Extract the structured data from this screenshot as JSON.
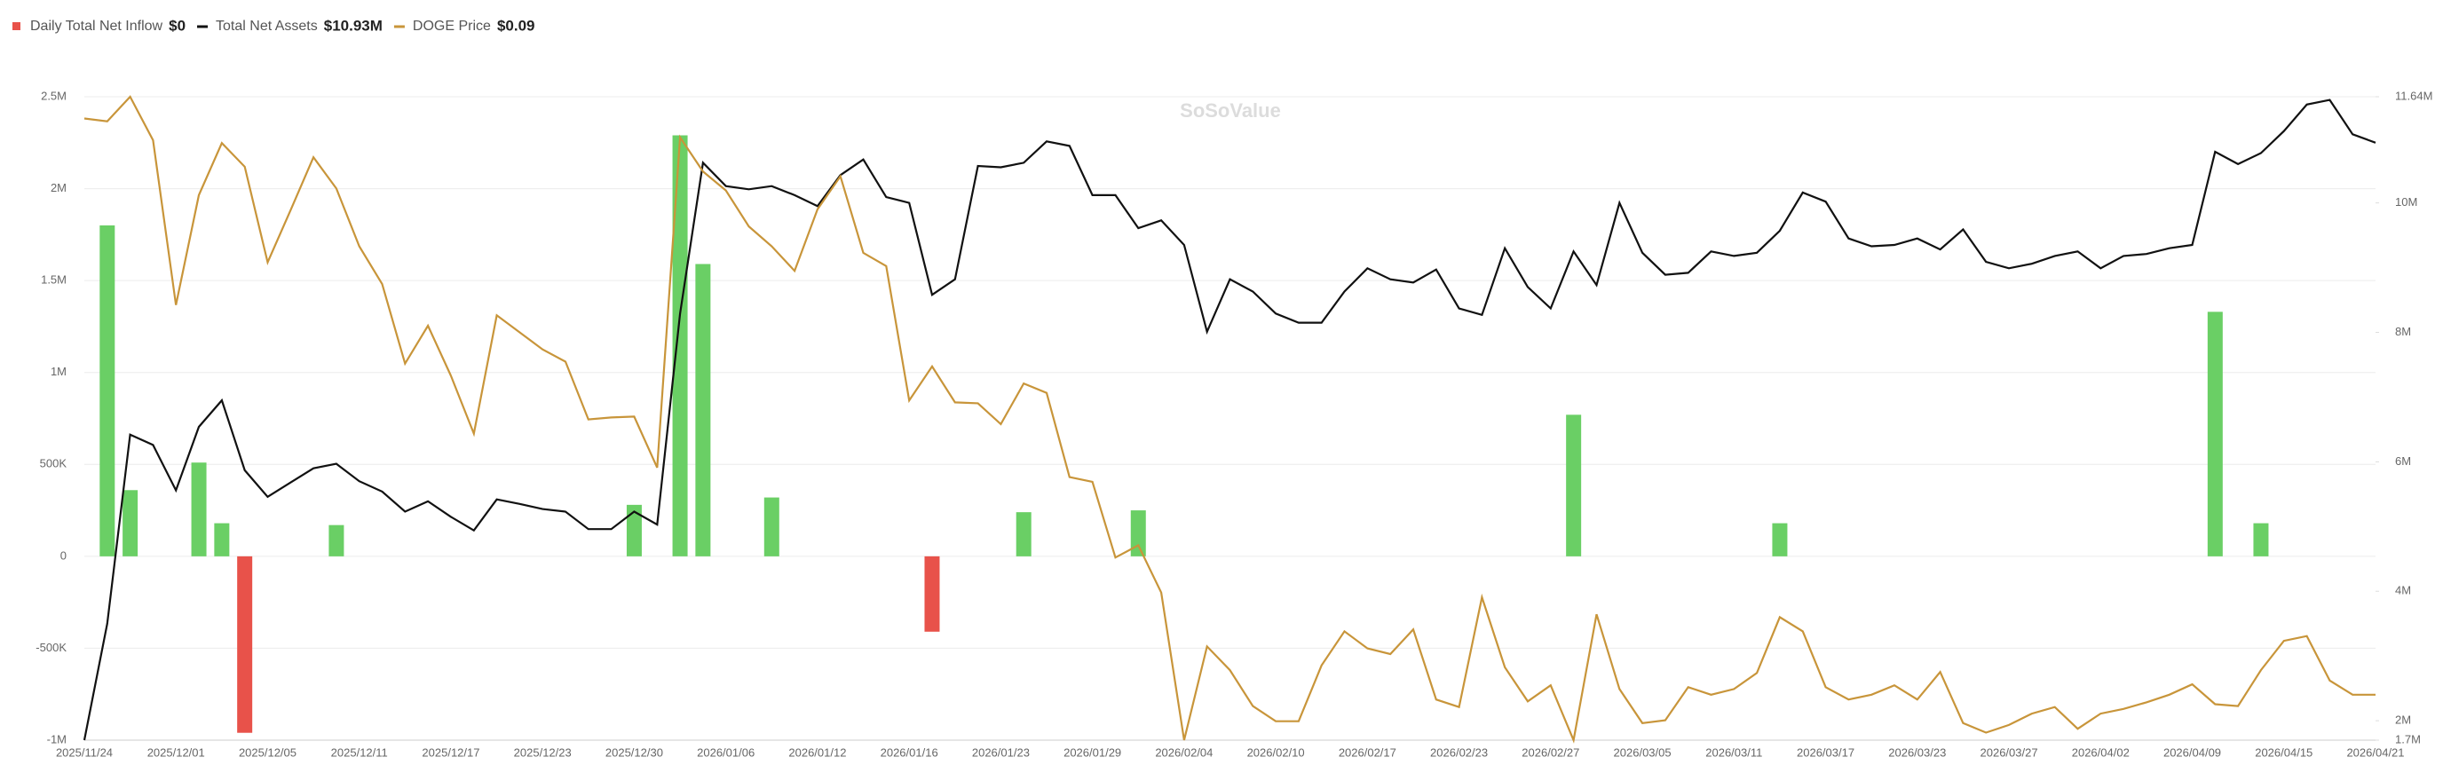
{
  "chart_data": {
    "type": "bar-line",
    "watermark": "SoSoValue",
    "categories": [
      "2025/11/24",
      null,
      null,
      null,
      "2025/12/01",
      null,
      null,
      null,
      "2025/12/05",
      null,
      null,
      null,
      "2025/12/11",
      null,
      null,
      null,
      "2025/12/17",
      null,
      null,
      null,
      "2025/12/23",
      null,
      null,
      null,
      "2025/12/30",
      null,
      null,
      null,
      "2026/01/06",
      null,
      null,
      null,
      "2026/01/12",
      null,
      null,
      null,
      "2026/01/16",
      null,
      null,
      null,
      "2026/01/23",
      null,
      null,
      null,
      "2026/01/29",
      null,
      null,
      null,
      "2026/02/04",
      null,
      null,
      null,
      "2026/02/10",
      null,
      null,
      null,
      "2026/02/17",
      null,
      null,
      null,
      "2026/02/23",
      null,
      null,
      null,
      "2026/02/27",
      null,
      null,
      null,
      "2026/03/05",
      null,
      null,
      null,
      "2026/03/11",
      null,
      null,
      null,
      "2026/03/17",
      null,
      null,
      null,
      "2026/03/23",
      null,
      null,
      null,
      "2026/03/27",
      null,
      null,
      null,
      "2026/04/02",
      null,
      null,
      null,
      "2026/04/09",
      null,
      null,
      null,
      "2026/04/15",
      null,
      null,
      null,
      "2026/04/21"
    ],
    "series": [
      {
        "name": "Daily Total Net Inflow",
        "latest_label": "$0",
        "type": "bar",
        "axis": "y",
        "color": "#e8524a",
        "positive_color": "#6acf65",
        "negative_color": "#e8524a",
        "values": [
          0,
          1800000,
          360000,
          0,
          0,
          510000,
          180000,
          -960000,
          0,
          0,
          0,
          170000,
          0,
          0,
          0,
          0,
          0,
          0,
          0,
          0,
          0,
          0,
          0,
          0,
          280000,
          0,
          2290000,
          1590000,
          0,
          0,
          320000,
          0,
          0,
          0,
          0,
          0,
          0,
          -410000,
          0,
          0,
          0,
          240000,
          0,
          0,
          0,
          0,
          250000,
          0,
          0,
          0,
          0,
          0,
          0,
          0,
          0,
          0,
          0,
          0,
          0,
          0,
          0,
          0,
          0,
          0,
          0,
          770000,
          0,
          0,
          0,
          0,
          0,
          0,
          0,
          0,
          180000,
          0,
          0,
          0,
          0,
          0,
          0,
          0,
          0,
          0,
          0,
          0,
          0,
          0,
          0,
          0,
          0,
          0,
          0,
          1330000,
          0,
          180000,
          0,
          0,
          0,
          0,
          0
        ]
      },
      {
        "name": "Total Net Assets",
        "latest_label": "$10.93M",
        "type": "line",
        "axis": "y2",
        "color": "#111111",
        "values": [
          1700000,
          3500000,
          6420000,
          6260000,
          5560000,
          6540000,
          6950000,
          5870000,
          5460000,
          5680000,
          5900000,
          5970000,
          5700000,
          5540000,
          5230000,
          5390000,
          5150000,
          4940000,
          5420000,
          5350000,
          5270000,
          5230000,
          4960000,
          4960000,
          5230000,
          5030000,
          8290000,
          10620000,
          10260000,
          10210000,
          10260000,
          10120000,
          9950000,
          10430000,
          10670000,
          10090000,
          10000000,
          8580000,
          8820000,
          10570000,
          10550000,
          10620000,
          10950000,
          10880000,
          10120000,
          10120000,
          9610000,
          9730000,
          9350000,
          8010000,
          8820000,
          8630000,
          8290000,
          8150000,
          8150000,
          8630000,
          8990000,
          8820000,
          8770000,
          8970000,
          8370000,
          8270000,
          9300000,
          8700000,
          8370000,
          9250000,
          8730000,
          10000000,
          9230000,
          8890000,
          8920000,
          9250000,
          9180000,
          9230000,
          9570000,
          10160000,
          10020000,
          9450000,
          9330000,
          9350000,
          9450000,
          9280000,
          9590000,
          9090000,
          8990000,
          9060000,
          9180000,
          9250000,
          8990000,
          9180000,
          9210000,
          9300000,
          9350000,
          10790000,
          10600000,
          10770000,
          11110000,
          11520000,
          11590000,
          11060000,
          10930000
        ]
      },
      {
        "name": "DOGE Price",
        "latest_label": "$0.09",
        "type": "line",
        "axis": "y3",
        "color": "#c8953a",
        "values": [
          0.1527,
          0.1524,
          0.155,
          0.1504,
          0.133,
          0.1446,
          0.1501,
          0.1476,
          0.1375,
          0.143,
          0.1486,
          0.1453,
          0.1392,
          0.1352,
          0.1268,
          0.1308,
          0.1255,
          0.1194,
          0.1319,
          0.1301,
          0.1283,
          0.127,
          0.1209,
          0.1211,
          0.1212,
          0.1158,
          0.1507,
          0.1471,
          0.1451,
          0.1413,
          0.1392,
          0.1366,
          0.1431,
          0.1466,
          0.1385,
          0.1371,
          0.1229,
          0.1265,
          0.1227,
          0.1226,
          0.1204,
          0.1247,
          0.1237,
          0.1148,
          0.1143,
          0.1063,
          0.1076,
          0.1026,
          0.087,
          0.0969,
          0.0944,
          0.0906,
          0.089,
          0.089,
          0.0949,
          0.0985,
          0.0967,
          0.0961,
          0.0987,
          0.0913,
          0.0905,
          0.1021,
          0.0947,
          0.0911,
          0.0928,
          0.087,
          0.1003,
          0.0924,
          0.0888,
          0.0891,
          0.0926,
          0.0918,
          0.0924,
          0.0941,
          0.1,
          0.0985,
          0.0926,
          0.0913,
          0.0918,
          0.0928,
          0.0913,
          0.0942,
          0.0888,
          0.0878,
          0.0886,
          0.0898,
          0.0905,
          0.0882,
          0.0898,
          0.0903,
          0.091,
          0.0918,
          0.0929,
          0.0908,
          0.0906,
          0.0944,
          0.0975,
          0.098,
          0.0933,
          0.0918,
          0.0918
        ]
      }
    ],
    "ylim": [
      -1000000,
      2500000
    ],
    "yticks": [
      {
        "value": -1000000,
        "label": "-1M"
      },
      {
        "value": -500000,
        "label": "-500K"
      },
      0,
      {
        "value": 500000,
        "label": "500K"
      },
      {
        "value": 1000000,
        "label": "1M"
      },
      {
        "value": 1500000,
        "label": "1.5M"
      },
      {
        "value": 2000000,
        "label": "2M"
      },
      {
        "value": 2500000,
        "label": "2.5M"
      }
    ],
    "y2lim": [
      1700000,
      11640000
    ],
    "y2ticks": [
      {
        "value": 1700000,
        "label": "1.7M"
      },
      {
        "value": 2000000,
        "label": "2M"
      },
      {
        "value": 4000000,
        "label": "4M"
      },
      {
        "value": 6000000,
        "label": "6M"
      },
      {
        "value": 8000000,
        "label": "8M"
      },
      {
        "value": 10000000,
        "label": "10M"
      },
      {
        "value": 11640000,
        "label": "11.64M"
      }
    ],
    "y3lim": [
      0.087,
      0.155
    ],
    "grid": true
  }
}
